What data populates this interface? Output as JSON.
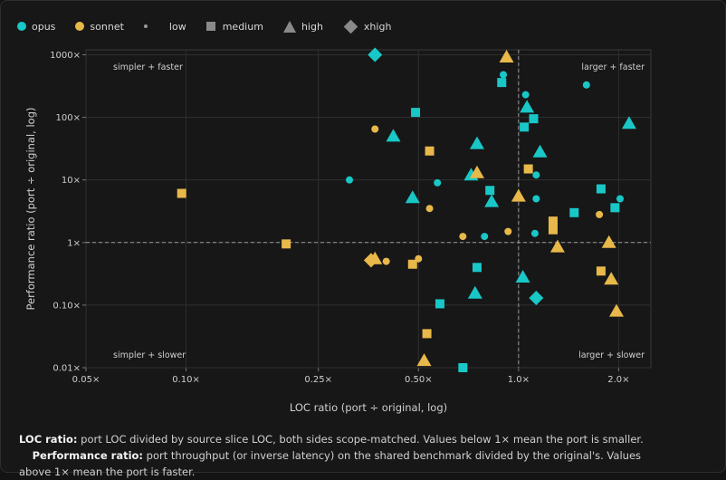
{
  "legend": {
    "opus": "opus",
    "sonnet": "sonnet",
    "low": "low",
    "medium": "medium",
    "high": "high",
    "xhigh": "xhigh"
  },
  "colors": {
    "opus": "#19c7c7",
    "sonnet": "#e8b84a",
    "grid": "#2f2f2f",
    "axis": "#cfcfcf"
  },
  "footnote": {
    "loc_term": "LOC ratio:",
    "loc_text": " port LOC divided by source slice LOC, both sides scope-matched. Values below 1× mean the port is smaller.",
    "perf_term": "Performance ratio:",
    "perf_text": " port throughput (or inverse latency) on the shared benchmark divided by the original's. Values above 1× mean the port is faster."
  },
  "chart_data": {
    "type": "scatter",
    "xlabel": "LOC ratio (port ÷ original, log)",
    "ylabel": "Performance ratio (port ÷ original, log)",
    "xscale": "log",
    "yscale": "log",
    "xlim": [
      0.05,
      2.5
    ],
    "ylim": [
      0.01,
      1200
    ],
    "xticks": [
      {
        "v": 0.05,
        "label": "0.05×"
      },
      {
        "v": 0.1,
        "label": "0.10×"
      },
      {
        "v": 0.25,
        "label": "0.25×"
      },
      {
        "v": 0.5,
        "label": "0.50×"
      },
      {
        "v": 1.0,
        "label": "1.0×"
      },
      {
        "v": 2.0,
        "label": "2.0×"
      }
    ],
    "yticks": [
      {
        "v": 0.01,
        "label": "0.01×"
      },
      {
        "v": 0.1,
        "label": "0.10×"
      },
      {
        "v": 1,
        "label": "1×"
      },
      {
        "v": 10,
        "label": "10×"
      },
      {
        "v": 100,
        "label": "100×"
      },
      {
        "v": 1000,
        "label": "1000×"
      }
    ],
    "reference_lines": {
      "x": 1,
      "y": 1
    },
    "quadrant_labels": {
      "top_left": "simpler + faster",
      "top_right": "larger + faster",
      "bottom_left": "simpler + slower",
      "bottom_right": "larger + slower"
    },
    "grid": true,
    "legend_position": "top-left",
    "series": [
      {
        "name": "opus",
        "points": [
          {
            "x": 0.31,
            "y": 10,
            "effort": "low"
          },
          {
            "x": 0.57,
            "y": 9,
            "effort": "low"
          },
          {
            "x": 0.79,
            "y": 1.25,
            "effort": "low"
          },
          {
            "x": 0.9,
            "y": 480,
            "effort": "low"
          },
          {
            "x": 1.05,
            "y": 230,
            "effort": "low"
          },
          {
            "x": 1.13,
            "y": 12,
            "effort": "low"
          },
          {
            "x": 1.13,
            "y": 5,
            "effort": "low"
          },
          {
            "x": 1.12,
            "y": 1.4,
            "effort": "low"
          },
          {
            "x": 1.6,
            "y": 330,
            "effort": "low"
          },
          {
            "x": 2.02,
            "y": 5,
            "effort": "low"
          },
          {
            "x": 0.49,
            "y": 120,
            "effort": "medium"
          },
          {
            "x": 0.58,
            "y": 0.105,
            "effort": "medium"
          },
          {
            "x": 0.68,
            "y": 0.01,
            "effort": "medium"
          },
          {
            "x": 0.75,
            "y": 0.4,
            "effort": "medium"
          },
          {
            "x": 0.82,
            "y": 6.8,
            "effort": "medium"
          },
          {
            "x": 0.89,
            "y": 360,
            "effort": "medium"
          },
          {
            "x": 1.04,
            "y": 70,
            "effort": "medium"
          },
          {
            "x": 1.11,
            "y": 95,
            "effort": "medium"
          },
          {
            "x": 1.47,
            "y": 3,
            "effort": "medium"
          },
          {
            "x": 1.77,
            "y": 7.2,
            "effort": "medium"
          },
          {
            "x": 1.95,
            "y": 3.6,
            "effort": "medium"
          },
          {
            "x": 0.42,
            "y": 50,
            "effort": "high"
          },
          {
            "x": 0.48,
            "y": 5.2,
            "effort": "high"
          },
          {
            "x": 0.72,
            "y": 12,
            "effort": "high"
          },
          {
            "x": 0.75,
            "y": 38,
            "effort": "high"
          },
          {
            "x": 0.74,
            "y": 0.155,
            "effort": "high"
          },
          {
            "x": 0.83,
            "y": 4.5,
            "effort": "high"
          },
          {
            "x": 1.03,
            "y": 0.28,
            "effort": "high"
          },
          {
            "x": 1.06,
            "y": 145,
            "effort": "high"
          },
          {
            "x": 1.16,
            "y": 28,
            "effort": "high"
          },
          {
            "x": 2.15,
            "y": 80,
            "effort": "high"
          },
          {
            "x": 0.37,
            "y": 1000,
            "effort": "xhigh"
          },
          {
            "x": 1.13,
            "y": 0.13,
            "effort": "xhigh"
          }
        ]
      },
      {
        "name": "sonnet",
        "points": [
          {
            "x": 0.37,
            "y": 65,
            "effort": "low"
          },
          {
            "x": 0.4,
            "y": 0.5,
            "effort": "low"
          },
          {
            "x": 0.5,
            "y": 0.55,
            "effort": "low"
          },
          {
            "x": 0.54,
            "y": 3.5,
            "effort": "low"
          },
          {
            "x": 0.68,
            "y": 1.25,
            "effort": "low"
          },
          {
            "x": 0.93,
            "y": 1.5,
            "effort": "low"
          },
          {
            "x": 1.75,
            "y": 2.8,
            "effort": "low"
          },
          {
            "x": 0.097,
            "y": 6.1,
            "effort": "medium"
          },
          {
            "x": 0.2,
            "y": 0.95,
            "effort": "medium"
          },
          {
            "x": 0.48,
            "y": 0.45,
            "effort": "medium"
          },
          {
            "x": 0.54,
            "y": 29,
            "effort": "medium"
          },
          {
            "x": 0.53,
            "y": 0.035,
            "effort": "medium"
          },
          {
            "x": 1.07,
            "y": 15,
            "effort": "medium"
          },
          {
            "x": 1.27,
            "y": 1.6,
            "effort": "medium"
          },
          {
            "x": 1.27,
            "y": 2.2,
            "effort": "medium"
          },
          {
            "x": 1.77,
            "y": 0.35,
            "effort": "medium"
          },
          {
            "x": 0.52,
            "y": 0.013,
            "effort": "high"
          },
          {
            "x": 0.75,
            "y": 13,
            "effort": "high"
          },
          {
            "x": 0.92,
            "y": 920,
            "effort": "high"
          },
          {
            "x": 1.0,
            "y": 5.5,
            "effort": "high"
          },
          {
            "x": 1.31,
            "y": 0.85,
            "effort": "high"
          },
          {
            "x": 1.87,
            "y": 1.0,
            "effort": "high"
          },
          {
            "x": 1.9,
            "y": 0.26,
            "effort": "high"
          },
          {
            "x": 1.97,
            "y": 0.08,
            "effort": "high"
          },
          {
            "x": 0.37,
            "y": 0.55,
            "effort": "high"
          },
          {
            "x": 0.36,
            "y": 0.52,
            "effort": "xhigh"
          }
        ]
      }
    ]
  }
}
